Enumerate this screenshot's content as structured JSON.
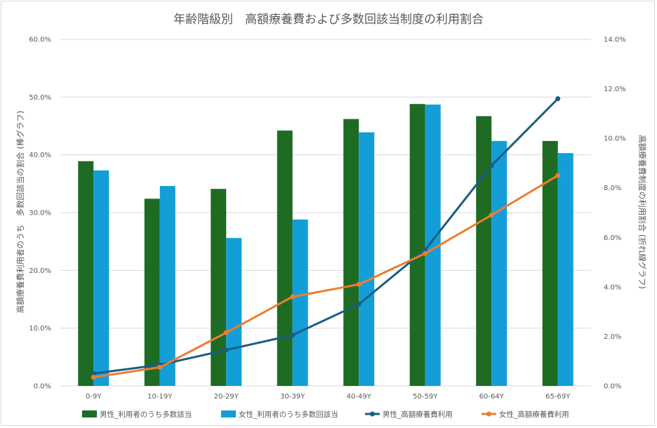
{
  "chart_data": {
    "type": "bar",
    "title": "年齢階級別　高額療養費および多数回該当制度の利用割合",
    "categories": [
      "0-9Y",
      "10-19Y",
      "20-29Y",
      "30-39Y",
      "40-49Y",
      "50-59Y",
      "60-64Y",
      "65-69Y"
    ],
    "y_left": {
      "label": "高額療養費利用者のうち　多数回該当の割合 (棒グラフ)",
      "min": 0,
      "max": 60,
      "step": 10,
      "ticks": [
        "0.0%",
        "10.0%",
        "20.0%",
        "30.0%",
        "40.0%",
        "50.0%",
        "60.0%"
      ]
    },
    "y_right": {
      "label": "高額療養費制度の利用割合 (折れ線グラフ)",
      "min": 0,
      "max": 14,
      "step": 2,
      "ticks": [
        "0.0%",
        "2.0%",
        "4.0%",
        "6.0%",
        "8.0%",
        "10.0%",
        "12.0%",
        "14.0%"
      ]
    },
    "grid": true,
    "legend_position": "bottom",
    "bar_series": [
      {
        "name": "男性_利用者のうち多数該当",
        "color": "#1e6b24",
        "values": [
          38.9,
          32.4,
          34.1,
          44.2,
          46.2,
          48.8,
          46.7,
          42.4
        ]
      },
      {
        "name": "女性_利用者のうち多数回該当",
        "color": "#139ed8",
        "values": [
          37.3,
          34.6,
          25.6,
          28.8,
          43.9,
          48.7,
          42.4,
          40.3
        ]
      }
    ],
    "line_series": [
      {
        "name": "男性_高額療養費利用",
        "color": "#1a5e80",
        "values": [
          0.5,
          0.85,
          1.45,
          2.05,
          3.3,
          5.5,
          8.9,
          11.6
        ]
      },
      {
        "name": "女性_高額療養費利用",
        "color": "#ed7d31",
        "values": [
          0.35,
          0.75,
          2.15,
          3.6,
          4.1,
          5.35,
          6.9,
          8.5
        ]
      }
    ]
  }
}
